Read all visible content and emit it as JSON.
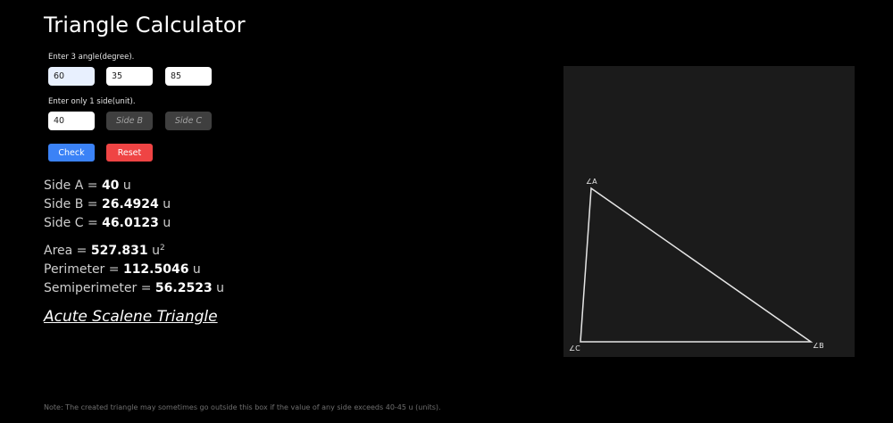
{
  "app": {
    "title": "Triangle Calculator"
  },
  "inputs": {
    "angles_label": "Enter 3 angle(degree).",
    "angle_1": "60",
    "angle_2": "35",
    "angle_3": "85",
    "side_label": "Enter only 1 side(unit).",
    "side_a": "40",
    "side_b_placeholder": "Side B",
    "side_c_placeholder": "Side C"
  },
  "buttons": {
    "check": "Check",
    "reset": "Reset"
  },
  "results": {
    "side_a_label": "Side A = ",
    "side_a_value": "40",
    "side_b_label": "Side B = ",
    "side_b_value": "26.4924",
    "side_c_label": "Side C = ",
    "side_c_value": "46.0123",
    "unit": "u",
    "area_label": "Area = ",
    "area_value": "527.831",
    "area_unit": "u",
    "area_exp": "2",
    "perimeter_label": "Perimeter = ",
    "perimeter_value": "112.5046",
    "semiperimeter_label": "Semiperimeter = ",
    "semiperimeter_value": "56.2523"
  },
  "classification": "Acute Scalene Triangle",
  "diagram": {
    "vertex_a_label": "∠A",
    "vertex_b_label": "∠B",
    "vertex_c_label": "∠C",
    "stroke_color": "#e6e6e6",
    "background_color": "#1b1b1b"
  },
  "footer": {
    "note": "Note: The created triangle may sometimes go outside this box if the value of any side exceeds 40-45 u (units)."
  }
}
